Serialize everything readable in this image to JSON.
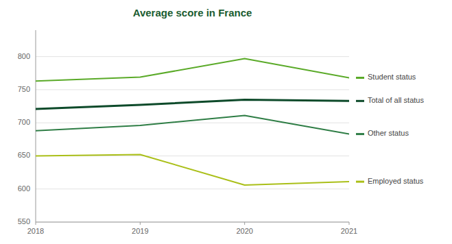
{
  "chart_data": {
    "type": "line",
    "title": "Average score in France",
    "x": [
      2018,
      2019,
      2020,
      2021
    ],
    "series": [
      {
        "name": "Student status",
        "color": "#5aaa28",
        "values": [
          763,
          769,
          797,
          768
        ]
      },
      {
        "name": "Total of all status",
        "color": "#0d4a2a",
        "values": [
          721,
          727,
          735,
          733
        ]
      },
      {
        "name": "Other status",
        "color": "#2e7d45",
        "values": [
          688,
          696,
          711,
          683
        ]
      },
      {
        "name": "Employed status",
        "color": "#aabf18",
        "values": [
          650,
          652,
          606,
          611
        ]
      }
    ],
    "xlim": [
      2018,
      2021
    ],
    "xticks": [
      2018,
      2019,
      2020,
      2021
    ],
    "ylim": [
      550,
      840
    ],
    "yticks": [
      550,
      600,
      650,
      700,
      750,
      800
    ],
    "grid": true,
    "legend": "right"
  }
}
